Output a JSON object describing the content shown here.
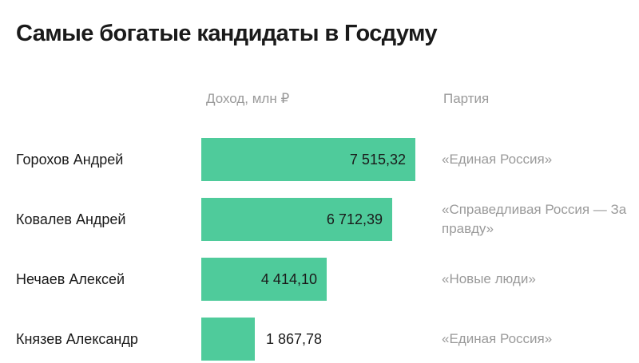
{
  "title": "Самые богатые кандидаты в Госдуму",
  "headers": {
    "value": "Доход, млн ₽",
    "party": "Партия"
  },
  "colors": {
    "bar": "#4fcb9b",
    "muted_text": "#9a9a9a",
    "text": "#1a1a1a"
  },
  "chart_data": {
    "type": "bar",
    "orientation": "horizontal",
    "title": "Самые богатые кандидаты в Госдуму",
    "xlabel": "Доход, млн ₽",
    "categories": [
      "Горохов Андрей",
      "Ковалев Андрей",
      "Нечаев Алексей",
      "Князев Александр"
    ],
    "values": [
      7515.32,
      6712.39,
      4414.1,
      1867.78
    ],
    "value_labels": [
      "7 515,32",
      "6 712,39",
      "4 414,10",
      "1 867,78"
    ],
    "parties": [
      "«Единая Россия»",
      "«Справедливая Россия — За правду»",
      "«Новые люди»",
      "«Единая Россия»"
    ],
    "xlim": [
      0,
      7515.32
    ]
  }
}
